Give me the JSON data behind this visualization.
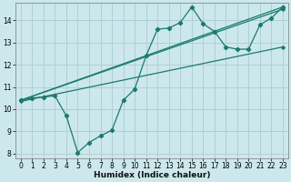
{
  "bg_color": "#cce8ec",
  "grid_color": "#b0d0d5",
  "line_color": "#1a7a6e",
  "xlabel": "Humidex (Indice chaleur)",
  "xlim": [
    -0.5,
    23.5
  ],
  "ylim": [
    7.8,
    14.8
  ],
  "yticks": [
    8,
    9,
    10,
    11,
    12,
    13,
    14
  ],
  "xticks": [
    0,
    1,
    2,
    3,
    4,
    5,
    6,
    7,
    8,
    9,
    10,
    11,
    12,
    13,
    14,
    15,
    16,
    17,
    18,
    19,
    20,
    21,
    22,
    23
  ],
  "zigzag": {
    "x": [
      0,
      1,
      2,
      3,
      4,
      5,
      6,
      7,
      8,
      9,
      10,
      11,
      12,
      13,
      14,
      15,
      16,
      17,
      18,
      19,
      20,
      21,
      22,
      23
    ],
    "y": [
      10.4,
      10.5,
      10.55,
      10.6,
      9.7,
      8.05,
      8.5,
      8.8,
      9.05,
      10.4,
      10.9,
      12.4,
      13.6,
      13.65,
      13.9,
      14.6,
      13.85,
      13.5,
      12.8,
      12.7,
      12.7,
      13.8,
      14.1,
      14.6
    ]
  },
  "straight_lines": [
    {
      "x": [
        0,
        23
      ],
      "y": [
        10.4,
        14.6
      ]
    },
    {
      "x": [
        0,
        23
      ],
      "y": [
        10.35,
        12.8
      ]
    },
    {
      "x": [
        0,
        23
      ],
      "y": [
        10.4,
        14.5
      ]
    }
  ]
}
